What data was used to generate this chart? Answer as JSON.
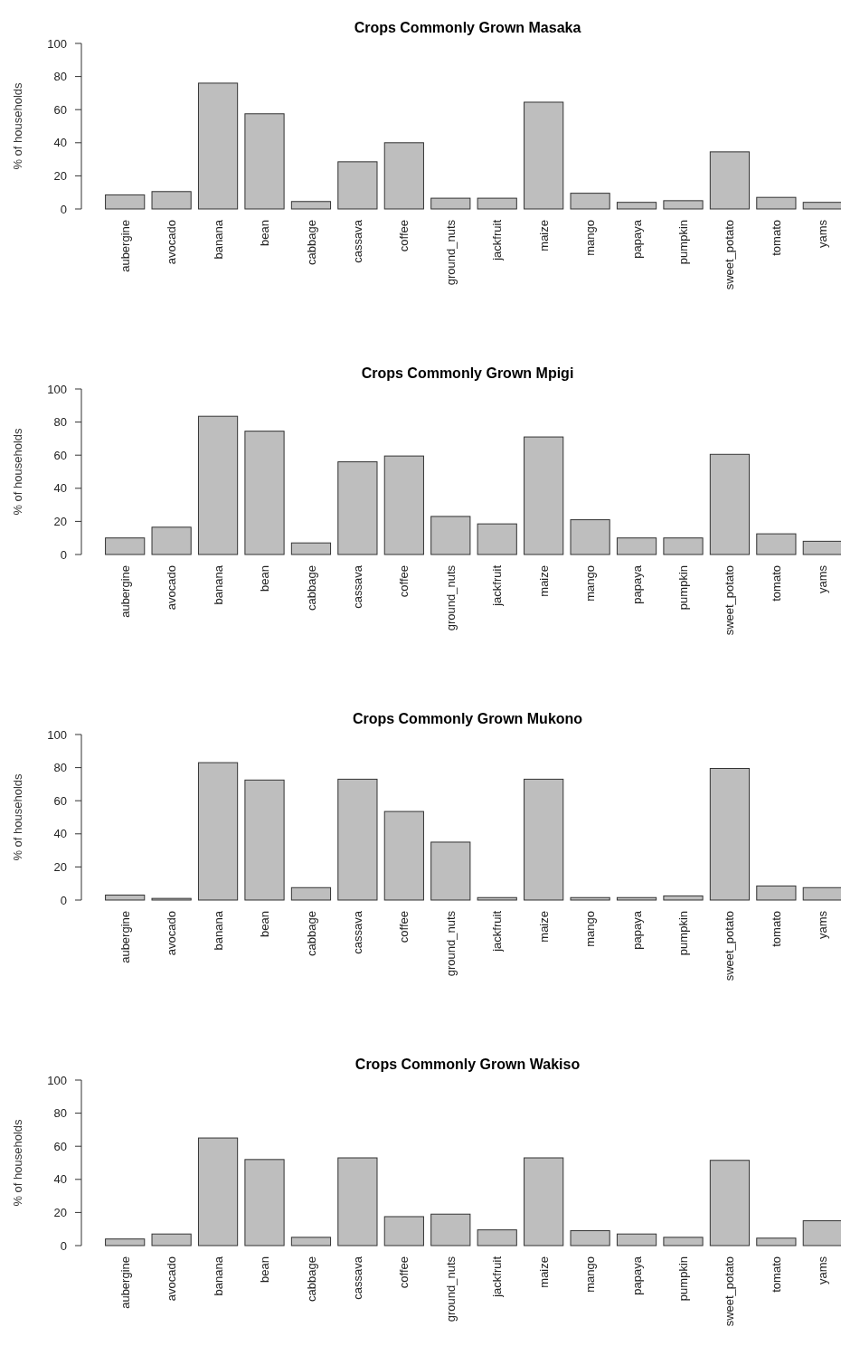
{
  "chart_data": [
    {
      "type": "bar",
      "title": "Crops Commonly Grown Masaka",
      "ylabel": "% of households",
      "color": "#bebebe",
      "ylim": [
        0,
        100
      ],
      "yticks": [
        0,
        20,
        40,
        60,
        80,
        100
      ],
      "categories": [
        "aubergine",
        "avocado",
        "banana",
        "bean",
        "cabbage",
        "cassava",
        "coffee",
        "ground_nuts",
        "jackfruit",
        "maize",
        "mango",
        "papaya",
        "pumpkin",
        "sweet_potato",
        "tomato",
        "yams"
      ],
      "values": [
        8.5,
        10.5,
        76,
        57.5,
        4.5,
        28.5,
        40,
        6.5,
        6.5,
        64.5,
        9.5,
        4,
        5,
        34.5,
        7,
        4
      ]
    },
    {
      "type": "bar",
      "title": "Crops Commonly Grown Mpigi",
      "ylabel": "% of households",
      "color": "#bebebe",
      "ylim": [
        0,
        100
      ],
      "yticks": [
        0,
        20,
        40,
        60,
        80,
        100
      ],
      "categories": [
        "aubergine",
        "avocado",
        "banana",
        "bean",
        "cabbage",
        "cassava",
        "coffee",
        "ground_nuts",
        "jackfruit",
        "maize",
        "mango",
        "papaya",
        "pumpkin",
        "sweet_potato",
        "tomato",
        "yams"
      ],
      "values": [
        10,
        16.5,
        83.5,
        74.5,
        7,
        56,
        59.5,
        23,
        18.5,
        71,
        21,
        10,
        10,
        60.5,
        12.5,
        8
      ]
    },
    {
      "type": "bar",
      "title": "Crops Commonly Grown Mukono",
      "ylabel": "% of households",
      "color": "#bebebe",
      "ylim": [
        0,
        100
      ],
      "yticks": [
        0,
        20,
        40,
        60,
        80,
        100
      ],
      "categories": [
        "aubergine",
        "avocado",
        "banana",
        "bean",
        "cabbage",
        "cassava",
        "coffee",
        "ground_nuts",
        "jackfruit",
        "maize",
        "mango",
        "papaya",
        "pumpkin",
        "sweet_potato",
        "tomato",
        "yams"
      ],
      "values": [
        3,
        1,
        83,
        72.5,
        7.5,
        73,
        53.5,
        35,
        1.5,
        73,
        1.5,
        1.5,
        2.5,
        79.5,
        8.5,
        7.5
      ]
    },
    {
      "type": "bar",
      "title": "Crops Commonly Grown Wakiso",
      "ylabel": "% of households",
      "color": "#bebebe",
      "ylim": [
        0,
        100
      ],
      "yticks": [
        0,
        20,
        40,
        60,
        80,
        100
      ],
      "categories": [
        "aubergine",
        "avocado",
        "banana",
        "bean",
        "cabbage",
        "cassava",
        "coffee",
        "ground_nuts",
        "jackfruit",
        "maize",
        "mango",
        "papaya",
        "pumpkin",
        "sweet_potato",
        "tomato",
        "yams"
      ],
      "values": [
        4,
        7,
        65,
        52,
        5,
        53,
        17.5,
        19,
        9.5,
        53,
        9,
        7,
        5,
        51.5,
        4.5,
        15
      ]
    }
  ]
}
